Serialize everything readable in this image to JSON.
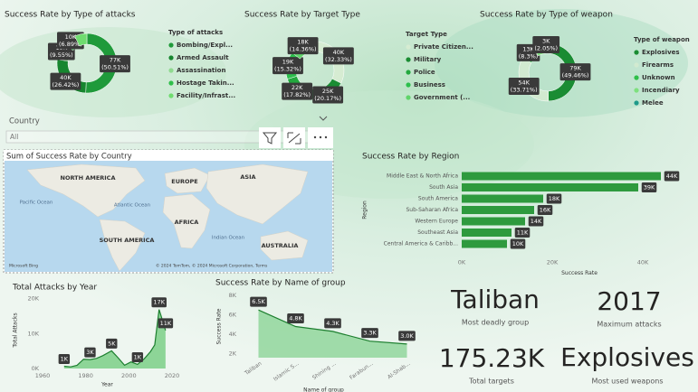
{
  "slicer": {
    "label": "Country",
    "value": "All"
  },
  "map": {
    "title": "Sum of Success Rate by Country",
    "labels": [
      "NORTH AMERICA",
      "EUROPE",
      "ASIA",
      "AFRICA",
      "SOUTH AMERICA",
      "AUSTRALIA",
      "Pacific Ocean",
      "Atlantic Ocean",
      "Indian Ocean"
    ],
    "attribution": "© 2024 TomTom, © 2024 Microsoft Corporation, Terms",
    "brand": "Microsoft Bing"
  },
  "cards": [
    {
      "value": "Taliban",
      "label": "Most deadly group"
    },
    {
      "value": 2017,
      "label": "Maximum attacks"
    },
    {
      "value": "175.23K",
      "label": "Total targets"
    },
    {
      "value": "Explosives",
      "label": "Most used weapons"
    }
  ],
  "chart_data": [
    {
      "type": "donut",
      "title": "Success Rate by Type of attacks",
      "legend_title": "Type of attacks",
      "categories": [
        "Bombing/Expl...",
        "Armed Assault",
        "Assassination",
        "Hostage Takin...",
        "Facility/Infrast..."
      ],
      "values": [
        77000,
        40000,
        15000,
        10000,
        10100
      ],
      "value_labels": [
        "77K",
        "40K",
        "15K",
        "10K",
        null
      ],
      "percents": [
        50.51,
        26.42,
        9.55,
        6.89,
        6.63
      ],
      "percent_labels": [
        "(50.51%)",
        "(26.42%)",
        "(9.55%)",
        "(6.89%)",
        null
      ],
      "colors": [
        "#1f9a3a",
        "#17862f",
        "#8fd98f",
        "#2fbf4a",
        "#6fdc6f"
      ]
    },
    {
      "type": "donut",
      "title": "Success Rate by Target Type",
      "legend_title": "Target Type",
      "categories": [
        "Private Citizen...",
        "Military",
        "Police",
        "Business",
        "Government (..."
      ],
      "values": [
        40000,
        25000,
        22000,
        19000,
        18000
      ],
      "value_labels": [
        "40K",
        "25K",
        "22K",
        "19K",
        "18K"
      ],
      "percents": [
        32.33,
        20.17,
        17.82,
        15.32,
        14.36
      ],
      "percent_labels": [
        "(32.33%)",
        "(20.17%)",
        "(17.82%)",
        "(15.32%)",
        "(14.36%)"
      ],
      "colors": [
        "#d6ecd2",
        "#1a8c33",
        "#23a83e",
        "#2cbf4c",
        "#5fd46a"
      ]
    },
    {
      "type": "donut",
      "title": "Success Rate by Type of weapon",
      "legend_title": "Type of weapon",
      "categories": [
        "Explosives",
        "Firearms",
        "Unknown",
        "Incendiary",
        "Melee"
      ],
      "values": [
        79000,
        54000,
        13000,
        10300,
        3000
      ],
      "value_labels": [
        "79K",
        "54K",
        "13K",
        null,
        "3K"
      ],
      "percents": [
        49.46,
        33.71,
        8.3,
        6.48,
        2.05
      ],
      "percent_labels": [
        "(49.46%)",
        "(33.71%)",
        "(8.3%)",
        null,
        "(2.05%)"
      ],
      "colors": [
        "#1a8c33",
        "#d2ead0",
        "#2fbf4a",
        "#7ee07e",
        "#1f9a8a"
      ]
    },
    {
      "type": "bar",
      "title": "Success Rate by Region",
      "categories": [
        "Middle East & North Africa",
        "South Asia",
        "South America",
        "Sub-Saharan Africa",
        "Western Europe",
        "Southeast Asia",
        "Central America & Caribb..."
      ],
      "values": [
        44000,
        39000,
        18000,
        16000,
        14000,
        11000,
        10000
      ],
      "value_labels": [
        "44K",
        "39K",
        "18K",
        "16K",
        "14K",
        "11K",
        "10K"
      ],
      "color": "#2e9a3e",
      "xlim": [
        0,
        48000
      ],
      "xticks": [
        {
          "value": 0,
          "label": "0K"
        },
        {
          "value": 20000,
          "label": "20K"
        },
        {
          "value": 40000,
          "label": "40K"
        }
      ],
      "xlabel": "Success Rate",
      "ylabel": "Region"
    },
    {
      "type": "area",
      "title": "Total Attacks by Year",
      "x": [
        1970,
        1973,
        1976,
        1979,
        1982,
        1985,
        1988,
        1992,
        1995,
        1998,
        2001,
        2004,
        2007,
        2010,
        2012,
        2014,
        2015,
        2017
      ],
      "values": [
        650,
        470,
        920,
        2660,
        2550,
        2900,
        3700,
        5070,
        3080,
        930,
        1900,
        1170,
        2700,
        4830,
        6770,
        16900,
        14960,
        10900
      ],
      "value_labels": [
        "1K",
        null,
        null,
        null,
        "3K",
        null,
        null,
        "5K",
        null,
        null,
        null,
        "1K",
        null,
        null,
        null,
        "17K",
        null,
        "11K"
      ],
      "color": "#2e9a3e",
      "xlim": [
        1960,
        2020
      ],
      "xticks": [
        1960,
        1980,
        2000,
        2020
      ],
      "ylim": [
        0,
        22000
      ],
      "yticks": [
        {
          "value": 0,
          "label": "0K"
        },
        {
          "value": 10000,
          "label": "10K"
        },
        {
          "value": 20000,
          "label": "20K"
        }
      ],
      "xlabel": "Year",
      "ylabel": "Total Attacks"
    },
    {
      "type": "line",
      "title": "Success Rate by Name of group",
      "categories": [
        "Taliban",
        "Islamic S...",
        "Shining ...",
        "Farabun...",
        "Al-Shab..."
      ],
      "values": [
        6500,
        4800,
        4300,
        3300,
        3000
      ],
      "value_labels": [
        "6.5K",
        "4.8K",
        "4.3K",
        "3.3K",
        "3.0K"
      ],
      "color": "#2e9a3e",
      "ylim": [
        1600,
        8000
      ],
      "yticks": [
        {
          "value": 2000,
          "label": "2K"
        },
        {
          "value": 4000,
          "label": "4K"
        },
        {
          "value": 6000,
          "label": "6K"
        },
        {
          "value": 8000,
          "label": "8K"
        }
      ],
      "xlabel": "Name of group",
      "ylabel": "Success Rate"
    }
  ]
}
